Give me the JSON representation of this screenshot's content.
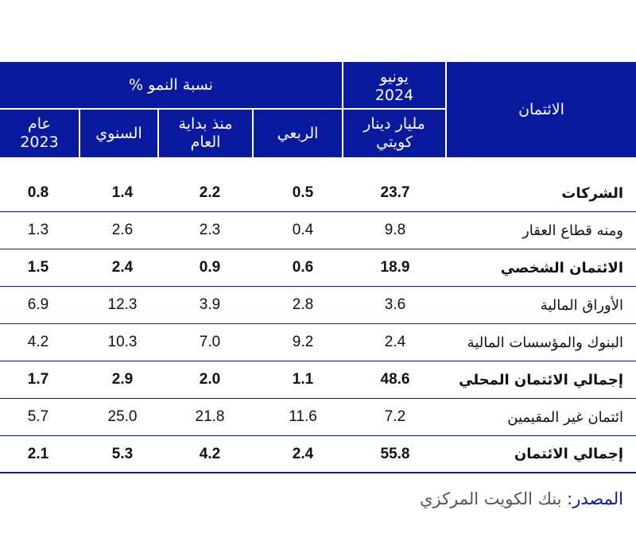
{
  "table": {
    "header": {
      "credit": "الائتمان",
      "june_2024": "يونيو 2024",
      "unit": "مليار دينار كويتي",
      "growth_rate": "نسبة النمو %",
      "quarterly": "الربعي",
      "ytd": "منذ بداية العام",
      "annual": "السنوي",
      "year_2023": "عام 2023"
    },
    "rows": [
      {
        "label": "الشركات",
        "bold": true,
        "values": [
          "23.7",
          "0.5",
          "2.2",
          "1.4",
          "0.8"
        ]
      },
      {
        "label": "ومنه قطاع العقار",
        "bold": false,
        "values": [
          "9.8",
          "0.4",
          "2.3",
          "2.6",
          "1.3"
        ]
      },
      {
        "label": "الائتمان الشخصي",
        "bold": true,
        "values": [
          "18.9",
          "0.6",
          "0.9",
          "2.4",
          "1.5"
        ]
      },
      {
        "label": "الأوراق المالية",
        "bold": false,
        "values": [
          "3.6",
          "2.8",
          "3.9",
          "12.3",
          "6.9"
        ]
      },
      {
        "label": "البنوك والمؤسسات المالية",
        "bold": false,
        "values": [
          "2.4",
          "9.2",
          "7.0",
          "10.3",
          "4.2"
        ]
      },
      {
        "label": "إجمالي الائتمان المحلي",
        "bold": true,
        "values": [
          "48.6",
          "1.1",
          "2.0",
          "2.9",
          "1.7"
        ]
      },
      {
        "label": "ائتمان غير المقيمين",
        "bold": false,
        "values": [
          "7.2",
          "11.6",
          "21.8",
          "25.0",
          "5.7"
        ]
      },
      {
        "label": "إجمالي الائتمان",
        "bold": true,
        "values": [
          "55.8",
          "2.4",
          "4.2",
          "5.3",
          "2.1"
        ]
      }
    ]
  },
  "source": {
    "label": "المصدر:",
    "text": "بنك الكويت المركزي"
  },
  "colors": {
    "header_bg": "#0a1a9e",
    "header_text": "#ffffff",
    "row_divider": "#0a1a9e"
  }
}
